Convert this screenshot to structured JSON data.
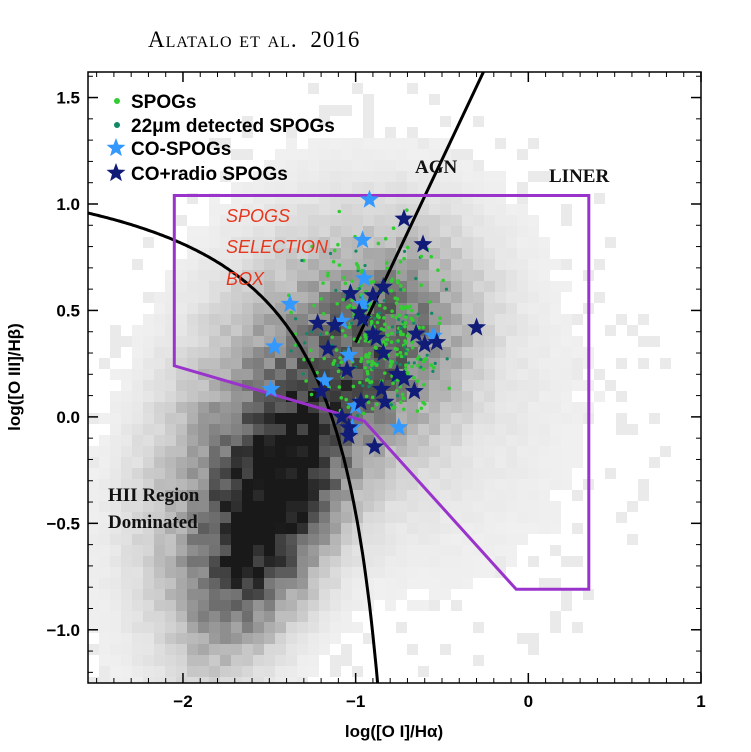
{
  "header": {
    "authors": "Alatalo et al.",
    "year": "2016"
  },
  "chart_data": {
    "type": "scatter",
    "xlabel": "log([O I]/Hα)",
    "ylabel": "log([O III]/Hβ)",
    "xlim": [
      -2.55,
      1.0
    ],
    "ylim": [
      -1.25,
      1.62
    ],
    "xticks": [
      -2,
      -1,
      0,
      1
    ],
    "yticks": [
      -1.0,
      -0.5,
      0.0,
      0.5,
      1.0,
      1.5
    ],
    "xtick_labels": [
      "-2",
      "-1",
      "0",
      "1"
    ],
    "ytick_labels": [
      "-1.0",
      "-0.5",
      "0.0",
      "0.5",
      "1.0",
      "1.5"
    ],
    "legend": {
      "placement": "top-left",
      "entries": [
        "SPOGs",
        "22μm detected SPOGs",
        "CO-SPOGs",
        "CO+radio SPOGs"
      ]
    },
    "colors": {
      "spogs": "#33cc33",
      "detected": "#118866",
      "co_spogs": "#3399ff",
      "co_radio": "#101c78",
      "box": "#9933cc",
      "curves": "#000000",
      "labels": "#e8361c"
    },
    "annotations": {
      "agn": "AGN",
      "liner": "LINER",
      "hii_line1": "HII Region",
      "hii_line2": "Dominated",
      "box_line1": "SPOGS",
      "box_line2": "SELECTION",
      "box_line3": "BOX"
    },
    "selection_box": [
      [
        -2.05,
        1.04
      ],
      [
        0.35,
        1.04
      ],
      [
        0.35,
        -0.81
      ],
      [
        -0.07,
        -0.81
      ],
      [
        -0.95,
        -0.02
      ],
      [
        -2.05,
        0.24
      ]
    ],
    "demarcation_hii": {
      "form": "y = 0.73 / (x + 0.59) + 1.33",
      "x_max": -0.59
    },
    "demarcation_agn_liner": [
      [
        -1.0,
        0.35
      ],
      [
        -0.26,
        1.62
      ]
    ],
    "co_spogs": [
      [
        -0.92,
        1.02
      ],
      [
        -0.96,
        0.83
      ],
      [
        -0.95,
        0.65
      ],
      [
        -1.38,
        0.53
      ],
      [
        -0.96,
        0.53
      ],
      [
        -1.08,
        0.45
      ],
      [
        -1.47,
        0.33
      ],
      [
        -1.04,
        0.29
      ],
      [
        -1.18,
        0.17
      ],
      [
        -1.49,
        0.13
      ],
      [
        -1.0,
        0.05
      ],
      [
        -1.02,
        -0.05
      ],
      [
        -0.75,
        -0.05
      ],
      [
        -0.55,
        0.38
      ]
    ],
    "co_radio_spogs": [
      [
        -0.72,
        0.93
      ],
      [
        -0.61,
        0.81
      ],
      [
        -1.03,
        0.58
      ],
      [
        -0.84,
        0.61
      ],
      [
        -0.9,
        0.57
      ],
      [
        -1.22,
        0.44
      ],
      [
        -1.12,
        0.43
      ],
      [
        -0.98,
        0.49
      ],
      [
        -0.96,
        0.46
      ],
      [
        -0.9,
        0.39
      ],
      [
        -0.88,
        0.37
      ],
      [
        -0.65,
        0.39
      ],
      [
        -0.6,
        0.34
      ],
      [
        -0.53,
        0.35
      ],
      [
        -0.3,
        0.42
      ],
      [
        -1.16,
        0.32
      ],
      [
        -0.84,
        0.3
      ],
      [
        -1.05,
        0.22
      ],
      [
        -0.76,
        0.2
      ],
      [
        -0.72,
        0.18
      ],
      [
        -1.2,
        0.12
      ],
      [
        -0.85,
        0.13
      ],
      [
        -0.66,
        0.12
      ],
      [
        -0.97,
        0.07
      ],
      [
        -0.83,
        0.07
      ],
      [
        -1.08,
        0.0
      ],
      [
        -1.04,
        -0.05
      ],
      [
        -1.04,
        -0.09
      ],
      [
        -0.89,
        -0.14
      ]
    ],
    "spogs_cluster": {
      "x_range": [
        -1.4,
        -0.45
      ],
      "y_range": [
        0.0,
        1.0
      ],
      "approx_count": 400
    },
    "background_distribution": "2D histogram of emission-line galaxies (grayscale density), densest near (-1.5, -0.5)"
  }
}
